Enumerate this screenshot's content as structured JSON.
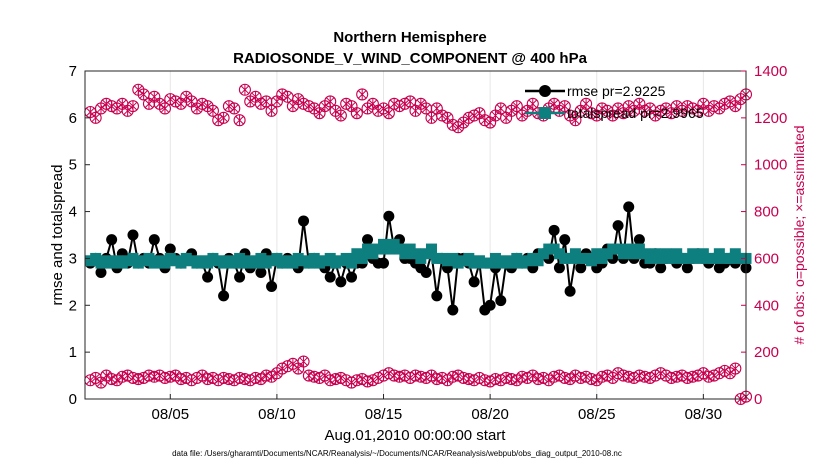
{
  "chart_data": {
    "type": "line",
    "title": "Northern Hemisphere",
    "subtitle": "RADIOSONDE_V_WIND_COMPONENT @ 400 hPa",
    "xlabel": "Aug.01,2010 00:00:00 start",
    "ylabel": "rmse and totalspread",
    "y2label": "# of obs: o=possible; ×=assimilated",
    "footnote": "data file: /Users/gharamti/Documents/NCAR/Reanalysis/~/Documents/NCAR/Reanalysis/webpub/obs_diag_output_2010-08.nc",
    "x_ticks": [
      5,
      10,
      15,
      20,
      25,
      30
    ],
    "x_tick_labels": [
      "08/05",
      "08/10",
      "08/15",
      "08/20",
      "08/25",
      "08/30"
    ],
    "xlim": [
      1,
      32
    ],
    "ylim": [
      0,
      7
    ],
    "y_ticks": [
      0,
      1,
      2,
      3,
      4,
      5,
      6,
      7
    ],
    "y2lim": [
      0,
      1400
    ],
    "y2_ticks": [
      0,
      200,
      400,
      600,
      800,
      1000,
      1200,
      1400
    ],
    "legend": {
      "position": "top-right",
      "entries": [
        "rmse pr=2.9225",
        "totalspread pr=2.9965"
      ]
    },
    "colors": {
      "rmse": "#000000",
      "spread": "#0e7f7f",
      "obs": "#c8004f"
    },
    "series": [
      {
        "name": "rmse",
        "x_start": 1.25,
        "x_step": 0.25,
        "values": [
          2.9,
          3.0,
          2.7,
          3.0,
          3.4,
          2.8,
          3.1,
          2.9,
          3.5,
          2.9,
          3.0,
          2.9,
          3.4,
          3.0,
          2.8,
          3.2,
          3.0,
          2.9,
          3.0,
          3.1,
          2.9,
          2.9,
          2.6,
          3.0,
          2.9,
          2.2,
          3.0,
          2.9,
          2.6,
          3.1,
          2.8,
          2.9,
          2.7,
          3.1,
          2.4,
          3.0,
          2.9,
          3.0,
          2.9,
          2.8,
          3.8,
          2.9,
          3.0,
          2.9,
          2.8,
          2.6,
          2.9,
          2.5,
          2.9,
          2.6,
          2.9,
          2.9,
          3.4,
          3.0,
          2.9,
          2.9,
          3.9,
          3.2,
          3.4,
          3.0,
          3.0,
          2.9,
          2.8,
          2.7,
          3.1,
          2.2,
          3.0,
          2.8,
          1.9,
          3.0,
          3.0,
          2.9,
          2.5,
          2.9,
          1.9,
          2.0,
          2.8,
          2.1,
          2.9,
          2.8,
          3.0,
          2.9,
          3.0,
          2.8,
          3.1,
          3.1,
          3.0,
          3.6,
          2.8,
          3.4,
          2.3,
          3.0,
          2.8,
          3.1,
          3.0,
          2.8,
          2.9,
          3.2,
          3.0,
          3.7,
          3.0,
          4.1,
          3.0,
          3.4,
          2.9,
          2.9,
          3.1,
          2.8,
          3.0,
          3.0,
          2.9,
          3.0,
          2.8,
          3.0,
          3.1,
          3.0,
          2.9,
          3.0,
          2.8,
          2.9,
          3.0,
          2.9,
          3.0,
          2.8
        ]
      },
      {
        "name": "totalspread",
        "x_start": 1.25,
        "x_step": 0.25,
        "values": [
          2.95,
          3.0,
          2.9,
          2.95,
          2.9,
          2.95,
          2.9,
          2.95,
          3.0,
          2.9,
          2.95,
          3.0,
          2.9,
          2.95,
          2.9,
          3.0,
          2.95,
          2.9,
          3.0,
          2.95,
          2.9,
          2.95,
          2.9,
          3.0,
          2.95,
          2.9,
          2.95,
          2.9,
          3.0,
          2.9,
          2.95,
          2.9,
          3.0,
          2.9,
          2.95,
          3.0,
          2.9,
          2.95,
          2.9,
          3.0,
          2.95,
          2.9,
          3.0,
          2.9,
          2.95,
          3.0,
          2.9,
          2.95,
          3.0,
          2.9,
          3.1,
          3.0,
          3.2,
          3.1,
          3.2,
          3.3,
          3.2,
          3.3,
          3.2,
          3.1,
          3.2,
          3.1,
          3.0,
          3.1,
          3.2,
          3.0,
          3.0,
          2.95,
          3.0,
          2.9,
          2.95,
          3.0,
          2.9,
          2.95,
          2.9,
          2.9,
          3.0,
          2.9,
          2.95,
          2.9,
          3.0,
          2.9,
          2.95,
          3.0,
          2.95,
          3.1,
          3.2,
          3.2,
          3.1,
          3.0,
          3.0,
          3.1,
          3.0,
          3.0,
          2.95,
          3.1,
          3.0,
          3.1,
          3.2,
          3.2,
          3.1,
          3.2,
          3.1,
          3.2,
          3.1,
          3.0,
          3.1,
          3.0,
          3.1,
          3.0,
          3.1,
          3.0,
          3.0,
          3.1,
          3.0,
          3.1,
          3.0,
          3.0,
          3.1,
          3.0,
          3.0,
          3.1,
          3.0,
          3.0
        ]
      },
      {
        "name": "obs_possible_upper",
        "x_start": 1.25,
        "x_step": 0.25,
        "values": [
          1225,
          1200,
          1240,
          1260,
          1250,
          1240,
          1260,
          1230,
          1250,
          1320,
          1300,
          1260,
          1290,
          1260,
          1240,
          1280,
          1270,
          1260,
          1290,
          1270,
          1240,
          1260,
          1250,
          1230,
          1190,
          1200,
          1250,
          1240,
          1190,
          1320,
          1270,
          1290,
          1260,
          1270,
          1230,
          1270,
          1300,
          1290,
          1250,
          1280,
          1260,
          1250,
          1240,
          1220,
          1250,
          1270,
          1230,
          1210,
          1260,
          1250,
          1220,
          1300,
          1240,
          1260,
          1230,
          1240,
          1220,
          1260,
          1250,
          1260,
          1270,
          1230,
          1260,
          1240,
          1200,
          1240,
          1210,
          1200,
          1170,
          1160,
          1180,
          1200,
          1210,
          1220,
          1190,
          1180,
          1210,
          1240,
          1200,
          1230,
          1250,
          1210,
          1230,
          1260,
          1220,
          1210,
          1240,
          1260,
          1230,
          1250,
          1210,
          1190,
          1230,
          1260,
          1220,
          1210,
          1240,
          1230,
          1210,
          1240,
          1220,
          1250,
          1230,
          1260,
          1230,
          1240,
          1210,
          1230,
          1240,
          1220,
          1250,
          1230,
          1250,
          1240,
          1230,
          1260,
          1230,
          1250,
          1240,
          1260,
          1270,
          1250,
          1280,
          1300
        ]
      },
      {
        "name": "obs_possible_lower",
        "x_start": 1.25,
        "x_step": 0.25,
        "values": [
          80,
          90,
          70,
          100,
          85,
          80,
          95,
          100,
          90,
          85,
          90,
          100,
          95,
          100,
          90,
          95,
          100,
          85,
          90,
          80,
          90,
          100,
          85,
          90,
          80,
          90,
          85,
          80,
          90,
          85,
          80,
          90,
          85,
          100,
          95,
          110,
          130,
          140,
          150,
          130,
          160,
          100,
          95,
          90,
          100,
          80,
          85,
          90,
          80,
          70,
          80,
          85,
          75,
          80,
          90,
          100,
          110,
          100,
          95,
          100,
          90,
          100,
          95,
          90,
          100,
          85,
          90,
          80,
          95,
          100,
          90,
          85,
          80,
          90,
          80,
          75,
          85,
          80,
          90,
          85,
          80,
          95,
          90,
          100,
          85,
          90,
          80,
          95,
          100,
          90,
          85,
          100,
          90,
          95,
          85,
          80,
          95,
          100,
          90,
          110,
          100,
          95,
          90,
          100,
          95,
          90,
          100,
          110,
          100,
          90,
          95,
          100,
          90,
          95,
          100,
          110,
          95,
          100,
          110,
          120,
          110,
          130,
          0,
          10
        ]
      }
    ]
  }
}
